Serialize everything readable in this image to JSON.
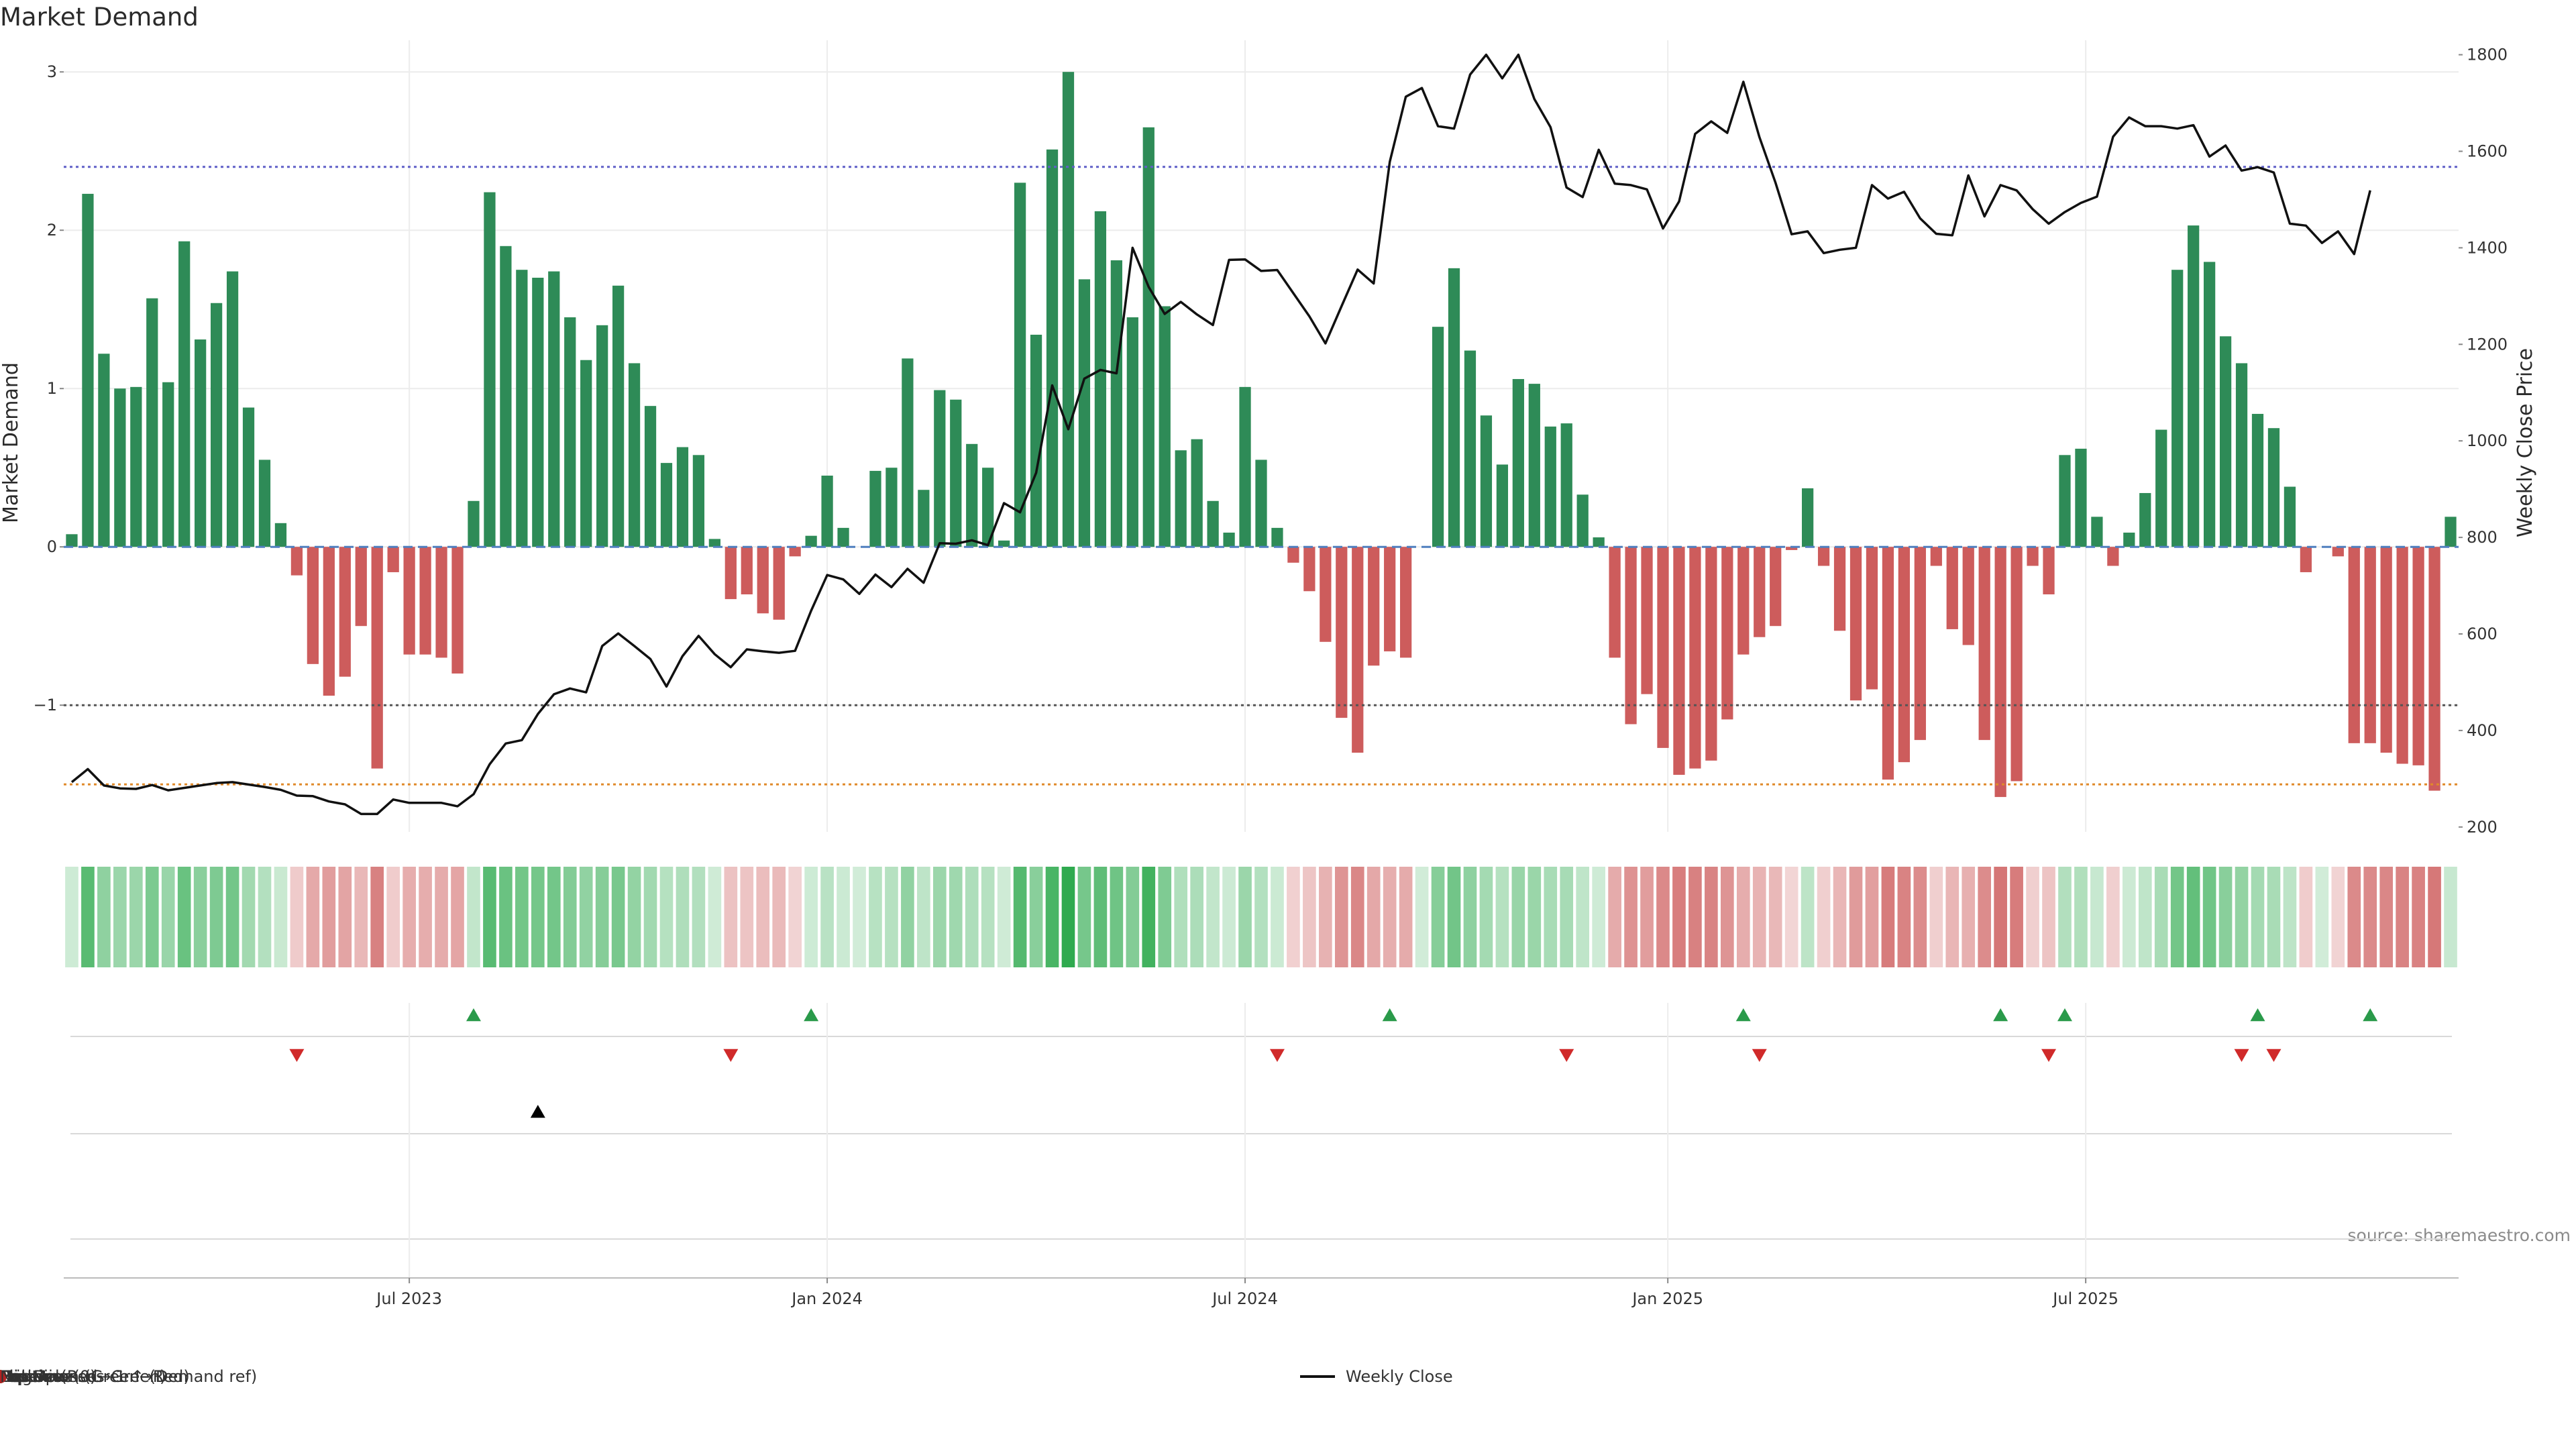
{
  "chart_data": {
    "type": "bar",
    "title": "Market Demand",
    "ylabel_left": "Market Demand",
    "ylabel_right": "Weekly Close Price",
    "source": "source: sharemaestro.com",
    "left_axis": {
      "ylim": [
        -1.8,
        3.2
      ],
      "ticks": [
        3,
        2,
        1,
        0,
        -1
      ]
    },
    "right_axis": {
      "ylim": [
        190,
        1830
      ],
      "ticks": [
        1800,
        1600,
        1400,
        1200,
        1000,
        800,
        600,
        400,
        200
      ]
    },
    "x_ticks": [
      {
        "label": "Jul 2023",
        "week": 21
      },
      {
        "label": "Jan 2024",
        "week": 47
      },
      {
        "label": "Jul 2024",
        "week": 73
      },
      {
        "label": "Jan 2025",
        "week": 99.3
      },
      {
        "label": "Jul 2025",
        "week": 125.3
      }
    ],
    "reference_lines": [
      {
        "name": "Baseline (0)",
        "value": 0,
        "color": "#4f7fbf",
        "style": "dashed"
      },
      {
        "name": "Top",
        "value": 2.4,
        "color": "#6060c8",
        "style": "dotted"
      },
      {
        "name": "Bottom",
        "value": -1.5,
        "color": "#e08a2a",
        "style": "dotted"
      },
      {
        "name": "-1 level",
        "value": -1,
        "color": "#555555",
        "style": "dotted"
      }
    ],
    "demand": [
      0.08,
      2.23,
      1.22,
      1.0,
      1.01,
      1.57,
      1.04,
      1.93,
      1.31,
      1.54,
      1.74,
      0.88,
      0.55,
      0.15,
      -0.18,
      -0.74,
      -0.94,
      -0.82,
      -0.5,
      -1.4,
      -0.16,
      -0.68,
      -0.68,
      -0.7,
      -0.8,
      0.29,
      2.24,
      1.9,
      1.75,
      1.7,
      1.74,
      1.45,
      1.18,
      1.4,
      1.65,
      1.16,
      0.89,
      0.53,
      0.63,
      0.58,
      0.05,
      -0.33,
      -0.3,
      -0.42,
      -0.46,
      -0.06,
      0.07,
      0.45,
      0.12,
      0.0,
      0.48,
      0.5,
      1.19,
      0.36,
      0.99,
      0.93,
      0.65,
      0.5,
      0.04,
      2.3,
      1.34,
      2.51,
      3.0,
      1.69,
      2.12,
      1.81,
      1.45,
      2.65,
      1.52,
      0.61,
      0.68,
      0.29,
      0.09,
      1.01,
      0.55,
      0.12,
      -0.1,
      -0.28,
      -0.6,
      -1.08,
      -1.3,
      -0.75,
      -0.66,
      -0.7,
      0.0,
      1.39,
      1.76,
      1.24,
      0.83,
      0.52,
      1.06,
      1.03,
      0.76,
      0.78,
      0.33,
      0.06,
      -0.7,
      -1.12,
      -0.93,
      -1.27,
      -1.44,
      -1.4,
      -1.35,
      -1.09,
      -0.68,
      -0.57,
      -0.5,
      -0.02,
      0.37,
      -0.12,
      -0.53,
      -0.97,
      -0.9,
      -1.47,
      -1.36,
      -1.22,
      -0.12,
      -0.52,
      -0.62,
      -1.22,
      -1.58,
      -1.48,
      -0.12,
      -0.3,
      0.58,
      0.62,
      0.19,
      -0.12,
      0.09,
      0.34,
      0.74,
      1.75,
      2.03,
      1.8,
      1.33,
      1.16,
      0.84,
      0.75,
      0.38,
      -0.16,
      0.0,
      -0.06,
      -1.24,
      -1.24,
      -1.3,
      -1.37,
      -1.38,
      -1.54,
      0.19
    ],
    "weekly_close": [
      293,
      320,
      286,
      280,
      279,
      287,
      276,
      281,
      286,
      291,
      293,
      288,
      283,
      277,
      265,
      264,
      253,
      247,
      227,
      227,
      257,
      250,
      250,
      250,
      243,
      268,
      330,
      373,
      380,
      434,
      475,
      487,
      479,
      575,
      601,
      575,
      548,
      491,
      554,
      596,
      558,
      531,
      568,
      564,
      561,
      565,
      648,
      722,
      713,
      683,
      723,
      697,
      735,
      706,
      788,
      787,
      794,
      784,
      871,
      852,
      934,
      1115,
      1024,
      1129,
      1147,
      1140,
      1400,
      1319,
      1263,
      1288,
      1262,
      1240,
      1375,
      1376,
      1352,
      1354,
      1306,
      1258,
      1202,
      1279,
      1355,
      1326,
      1578,
      1713,
      1731,
      1652,
      1647,
      1759,
      1800,
      1751,
      1800,
      1708,
      1650,
      1525,
      1505,
      1603,
      1533,
      1530,
      1521,
      1440,
      1496,
      1636,
      1662,
      1638,
      1744,
      1629,
      1535,
      1428,
      1434,
      1389,
      1396,
      1400,
      1530,
      1502,
      1516,
      1461,
      1429,
      1426,
      1550,
      1465,
      1530,
      1519,
      1480,
      1450,
      1474,
      1493,
      1506,
      1630,
      1670,
      1652,
      1652,
      1647,
      1654,
      1589,
      1612,
      1560,
      1567,
      1556,
      1450,
      1446,
      1410,
      1434,
      1387,
      1519
    ]
  },
  "heat_strip": {
    "green": "#2e8b57",
    "red": "#cd5c5c"
  },
  "signals": {
    "flip_up_weeks": [
      25,
      46,
      82,
      104,
      120,
      124,
      136,
      143
    ],
    "flip_down_weeks": [
      14,
      41,
      75,
      93,
      105,
      123,
      135,
      137
    ],
    "cross_weeks": [
      29
    ]
  },
  "legend": [
    {
      "label": "Weekly Close",
      "kind": "line",
      "color": "#111111"
    },
    {
      "label": "Baseline (0)",
      "kind": "dash",
      "color": "#4f7fbf"
    },
    {
      "label": "Top",
      "kind": "dot",
      "color": "#6060c8"
    },
    {
      "label": "Bottom",
      "kind": "dot",
      "color": "#e08a2a"
    },
    {
      "label": "-1 level",
      "kind": "dot",
      "color": "#555555"
    },
    {
      "label": "Flip Up (Red→Green)",
      "kind": "tri-up",
      "color": "#2a9a4a"
    },
    {
      "label": "Flip Down (Green→Red)",
      "kind": "tri-down",
      "color": "#d02a2a"
    },
    {
      "label": "Price crosses -1 ↑ (Demand ref)",
      "kind": "tri-up",
      "color": "#000000"
    },
    {
      "label": "Positive",
      "kind": "circle",
      "color": "#1e8c1e"
    },
    {
      "label": "Negative",
      "kind": "circle",
      "color": "#b22222"
    }
  ]
}
